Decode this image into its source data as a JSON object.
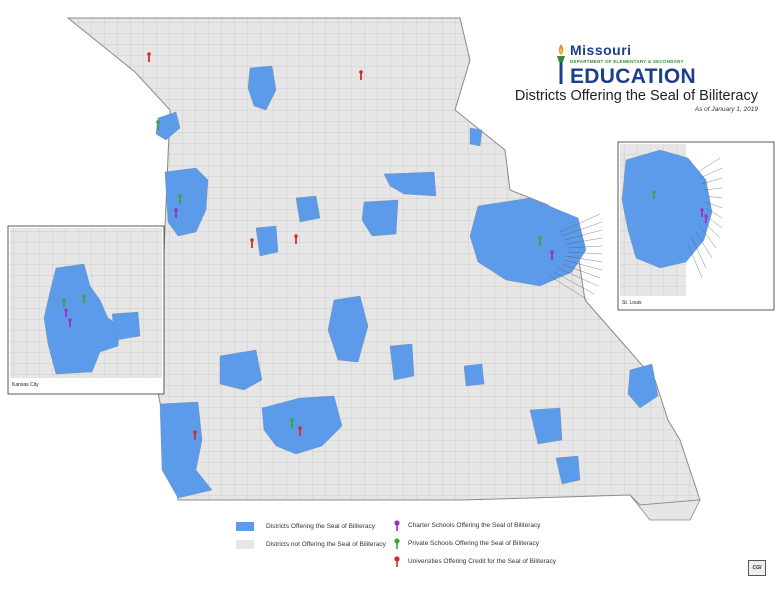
{
  "header": {
    "logo_word_missouri": "Missouri",
    "logo_department": "DEPARTMENT OF ELEMENTARY & SECONDARY",
    "logo_word_education": "EDUCATION",
    "title": "Districts Offering the Seal of Biliteracy",
    "subtitle": "As of January 1, 2019"
  },
  "legend": {
    "items": [
      {
        "label": "Districts Offering the Seal of Biliteracy",
        "kind": "swatch",
        "color": "#5b9bea"
      },
      {
        "label": "Districts not Offering the Seal of Biliteracy",
        "kind": "swatch",
        "color": "#e6e6e6"
      },
      {
        "label": "Charter Schools Offering the Seal of Biliteracy",
        "kind": "pin",
        "color": "#9b2fc4"
      },
      {
        "label": "Private Schools Offering the Seal of Biliteracy",
        "kind": "pin",
        "color": "#3aa53a"
      },
      {
        "label": "Universities Offering Credit for the Seal of Biliteracy",
        "kind": "pin",
        "color": "#d62a2a"
      }
    ]
  },
  "insets": {
    "kansas_city": {
      "label": "Kansas City"
    },
    "st_louis": {
      "label": "St. Louis"
    }
  },
  "colors": {
    "offering": "#5b9bea",
    "not_offering": "#e6e6e6",
    "border": "#8a8a8a",
    "charter": "#9b2fc4",
    "private": "#3aa53a",
    "university": "#d62a2a"
  },
  "footer": {
    "badge": "CGI"
  }
}
